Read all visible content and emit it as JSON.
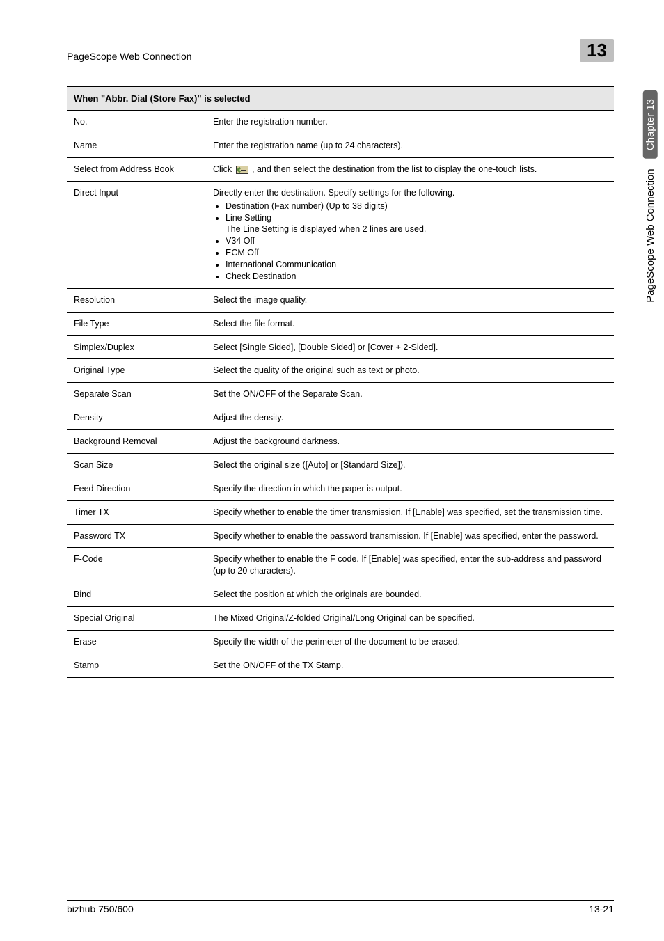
{
  "header": {
    "section_title": "PageScope Web Connection",
    "chapter_number": "13"
  },
  "side": {
    "label": "PageScope Web Connection",
    "chapter": "Chapter 13"
  },
  "table": {
    "title": "When \"Abbr. Dial (Store Fax)\" is selected",
    "rows": [
      {
        "k": "No.",
        "v_type": "text",
        "v": "Enter the registration number."
      },
      {
        "k": "Name",
        "v_type": "text",
        "v": "Enter the registration name (up to 24 characters)."
      },
      {
        "k": "Select from Address Book",
        "v_type": "icon_text",
        "pre": "Click ",
        "post": " , and then select the destination from the list to display the one-touch lists."
      },
      {
        "k": "Direct Input",
        "v_type": "text_list",
        "v": "Directly enter the destination. Specify settings for the following.",
        "items": [
          "Destination (Fax number) (Up to 38 digits)",
          "Line Setting\nThe Line Setting is displayed when 2 lines are used.",
          "V34 Off",
          "ECM Off",
          "International Communication",
          "Check Destination"
        ]
      },
      {
        "k": "Resolution",
        "v_type": "text",
        "v": "Select the image quality."
      },
      {
        "k": "File Type",
        "v_type": "text",
        "v": "Select the file format."
      },
      {
        "k": "Simplex/Duplex",
        "v_type": "text",
        "v": "Select [Single Sided], [Double Sided] or [Cover + 2-Sided]."
      },
      {
        "k": "Original Type",
        "v_type": "text",
        "v": "Select the quality of the original such as text or photo."
      },
      {
        "k": "Separate Scan",
        "v_type": "text",
        "v": "Set the ON/OFF of the Separate Scan."
      },
      {
        "k": "Density",
        "v_type": "text",
        "v": "Adjust the density."
      },
      {
        "k": "Background Removal",
        "v_type": "text",
        "v": "Adjust the background darkness."
      },
      {
        "k": "Scan Size",
        "v_type": "text",
        "v": "Select the original size ([Auto] or [Standard Size])."
      },
      {
        "k": "Feed Direction",
        "v_type": "text",
        "v": "Specify the direction in which the paper is output."
      },
      {
        "k": "Timer TX",
        "v_type": "text",
        "v": "Specify whether to enable the timer transmission. If [Enable] was specified, set the transmission time."
      },
      {
        "k": "Password TX",
        "v_type": "text",
        "v": "Specify whether to enable the password transmission. If [Enable] was specified, enter the password."
      },
      {
        "k": "F-Code",
        "v_type": "text",
        "v": "Specify whether to enable the F code. If [Enable] was specified, enter the sub-address and password (up to 20 characters)."
      },
      {
        "k": "Bind",
        "v_type": "text",
        "v": "Select the position at which the originals are bounded."
      },
      {
        "k": "Special Original",
        "v_type": "text",
        "v": "The Mixed Original/Z-folded Original/Long Original can be specified."
      },
      {
        "k": "Erase",
        "v_type": "text",
        "v": "Specify the width of the perimeter of the document to be erased."
      },
      {
        "k": "Stamp",
        "v_type": "text",
        "v": "Set the ON/OFF of the TX Stamp."
      }
    ]
  },
  "footer": {
    "product": "bizhub 750/600",
    "page": "13-21"
  }
}
